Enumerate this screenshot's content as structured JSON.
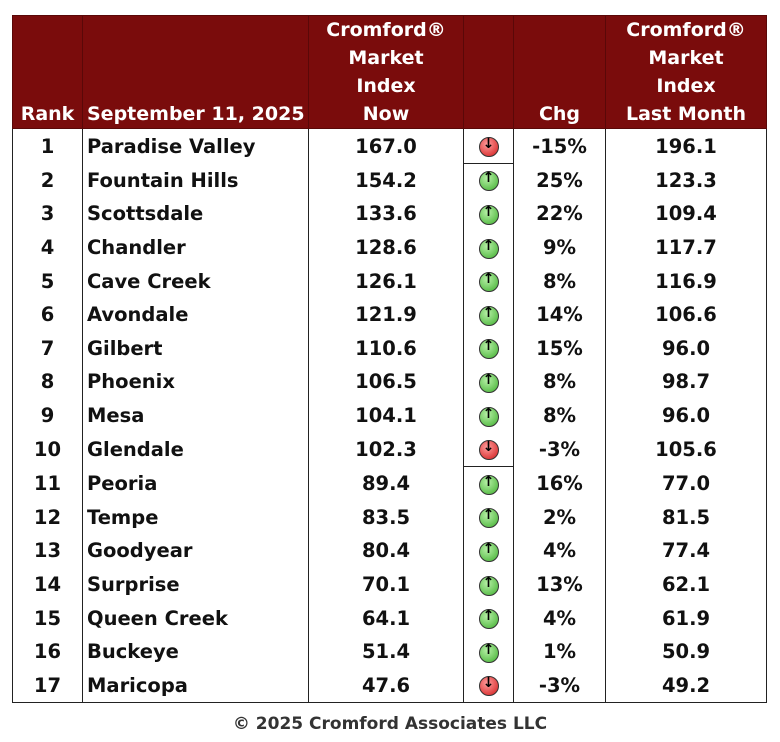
{
  "chart_data": {
    "type": "table",
    "columns": {
      "rank": "Rank",
      "date": "September 11, 2025",
      "now": [
        "Cromford®",
        "Market",
        "Index",
        "Now"
      ],
      "chg": "Chg",
      "last": [
        "Cromford®",
        "Market",
        "Index",
        "Last Month"
      ]
    },
    "rows": [
      {
        "rank": "1",
        "city": "Paradise Valley",
        "now": "167.0",
        "dir": "down",
        "chg": "-15%",
        "last": "196.1"
      },
      {
        "rank": "2",
        "city": "Fountain Hills",
        "now": "154.2",
        "dir": "up",
        "chg": "25%",
        "last": "123.3"
      },
      {
        "rank": "3",
        "city": "Scottsdale",
        "now": "133.6",
        "dir": "up",
        "chg": "22%",
        "last": "109.4"
      },
      {
        "rank": "4",
        "city": "Chandler",
        "now": "128.6",
        "dir": "up",
        "chg": "9%",
        "last": "117.7"
      },
      {
        "rank": "5",
        "city": "Cave Creek",
        "now": "126.1",
        "dir": "up",
        "chg": "8%",
        "last": "116.9"
      },
      {
        "rank": "6",
        "city": "Avondale",
        "now": "121.9",
        "dir": "up",
        "chg": "14%",
        "last": "106.6"
      },
      {
        "rank": "7",
        "city": "Gilbert",
        "now": "110.6",
        "dir": "up",
        "chg": "15%",
        "last": "96.0"
      },
      {
        "rank": "8",
        "city": "Phoenix",
        "now": "106.5",
        "dir": "up",
        "chg": "8%",
        "last": "98.7"
      },
      {
        "rank": "9",
        "city": "Mesa",
        "now": "104.1",
        "dir": "up",
        "chg": "8%",
        "last": "96.0"
      },
      {
        "rank": "10",
        "city": "Glendale",
        "now": "102.3",
        "dir": "down",
        "chg": "-3%",
        "last": "105.6"
      },
      {
        "rank": "11",
        "city": "Peoria",
        "now": "89.4",
        "dir": "up",
        "chg": "16%",
        "last": "77.0"
      },
      {
        "rank": "12",
        "city": "Tempe",
        "now": "83.5",
        "dir": "up",
        "chg": "2%",
        "last": "81.5"
      },
      {
        "rank": "13",
        "city": "Goodyear",
        "now": "80.4",
        "dir": "up",
        "chg": "4%",
        "last": "77.4"
      },
      {
        "rank": "14",
        "city": "Surprise",
        "now": "70.1",
        "dir": "up",
        "chg": "13%",
        "last": "62.1"
      },
      {
        "rank": "15",
        "city": "Queen Creek",
        "now": "64.1",
        "dir": "up",
        "chg": "4%",
        "last": "61.9"
      },
      {
        "rank": "16",
        "city": "Buckeye",
        "now": "51.4",
        "dir": "up",
        "chg": "1%",
        "last": "50.9"
      },
      {
        "rank": "17",
        "city": "Maricopa",
        "now": "47.6",
        "dir": "down",
        "chg": "-3%",
        "last": "49.2"
      }
    ],
    "colors": {
      "header_bg": "#7a0c0c",
      "up": "#3fae2e",
      "down": "#d01818"
    }
  },
  "footer": "© 2025 Cromford Associates LLC"
}
